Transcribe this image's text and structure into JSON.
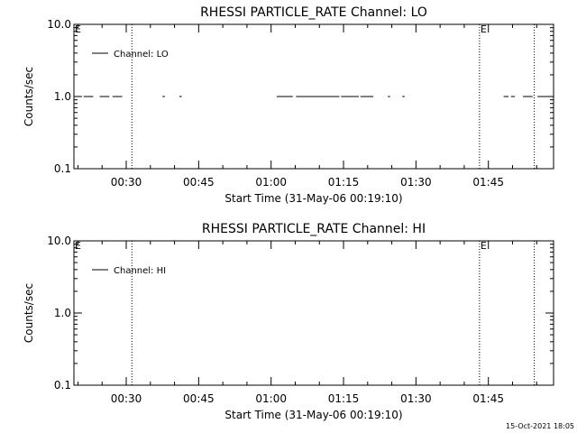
{
  "chart_data": [
    {
      "type": "line",
      "title": "RHESSI PARTICLE_RATE Channel: LO",
      "xlabel": "Start Time (31-May-06 00:19:10)",
      "ylabel": "Counts/sec",
      "xlim": [
        "00:19:10",
        "01:58:30"
      ],
      "ylim": [
        0.1,
        10.0
      ],
      "y_scale": "log",
      "x_ticks": [
        "00:30",
        "00:45",
        "01:00",
        "01:15",
        "01:30",
        "01:45"
      ],
      "y_ticks": [
        "0.1",
        "1.0",
        "10.0"
      ],
      "legend": {
        "label": "Channel: LO",
        "placement": "top-left"
      },
      "grid": false,
      "series": [
        {
          "name": "Channel: LO",
          "segments": [
            {
              "x": [
                "00:21:10",
                "00:23:10"
              ],
              "y": [
                1.0,
                1.0
              ]
            },
            {
              "x": [
                "00:24:30",
                "00:26:30"
              ],
              "y": [
                1.0,
                1.0
              ]
            },
            {
              "x": [
                "00:27:10",
                "00:29:10"
              ],
              "y": [
                1.0,
                1.0
              ]
            },
            {
              "x": [
                "00:37:30",
                "00:38:00"
              ],
              "y": [
                1.0,
                1.0
              ]
            },
            {
              "x": [
                "00:41:00",
                "00:41:30"
              ],
              "y": [
                1.0,
                1.0
              ]
            },
            {
              "x": [
                "01:01:10",
                "01:04:30"
              ],
              "y": [
                1.0,
                1.0
              ]
            },
            {
              "x": [
                "01:05:10",
                "01:14:10"
              ],
              "y": [
                1.0,
                1.0
              ]
            },
            {
              "x": [
                "01:14:30",
                "01:18:10"
              ],
              "y": [
                1.0,
                1.0
              ]
            },
            {
              "x": [
                "01:18:30",
                "01:21:10"
              ],
              "y": [
                1.0,
                1.0
              ]
            },
            {
              "x": [
                "01:24:10",
                "01:24:40"
              ],
              "y": [
                1.0,
                1.0
              ]
            },
            {
              "x": [
                "01:27:10",
                "01:27:40"
              ],
              "y": [
                1.0,
                1.0
              ]
            },
            {
              "x": [
                "01:48:10",
                "01:49:10"
              ],
              "y": [
                1.0,
                1.0
              ]
            },
            {
              "x": [
                "01:49:40",
                "01:50:30"
              ],
              "y": [
                1.0,
                1.0
              ]
            },
            {
              "x": [
                "01:52:10",
                "01:54:10"
              ],
              "y": [
                1.0,
                1.0
              ]
            },
            {
              "x": [
                "01:55:10",
                "01:57:10"
              ],
              "y": [
                1.0,
                1.0
              ]
            }
          ]
        }
      ],
      "vertical_lines": [
        {
          "x": "00:31:10",
          "label": ""
        },
        {
          "x": "01:43:10",
          "label": "E"
        },
        {
          "x": "01:54:30",
          "label": ""
        }
      ],
      "left_flag": "E"
    },
    {
      "type": "line",
      "title": "RHESSI PARTICLE_RATE Channel: HI",
      "xlabel": "Start Time (31-May-06 00:19:10)",
      "ylabel": "Counts/sec",
      "xlim": [
        "00:19:10",
        "01:58:30"
      ],
      "ylim": [
        0.1,
        10.0
      ],
      "y_scale": "log",
      "x_ticks": [
        "00:30",
        "00:45",
        "01:00",
        "01:15",
        "01:30",
        "01:45"
      ],
      "y_ticks": [
        "0.1",
        "1.0",
        "10.0"
      ],
      "legend": {
        "label": "Channel: HI",
        "placement": "top-left"
      },
      "grid": false,
      "series": [
        {
          "name": "Channel: HI",
          "segments": []
        }
      ],
      "vertical_lines": [
        {
          "x": "00:31:10",
          "label": ""
        },
        {
          "x": "01:43:10",
          "label": "E"
        },
        {
          "x": "01:54:30",
          "label": ""
        }
      ],
      "left_flag": "E"
    }
  ],
  "footer": {
    "timestamp": "15-Oct-2021 18:05"
  }
}
